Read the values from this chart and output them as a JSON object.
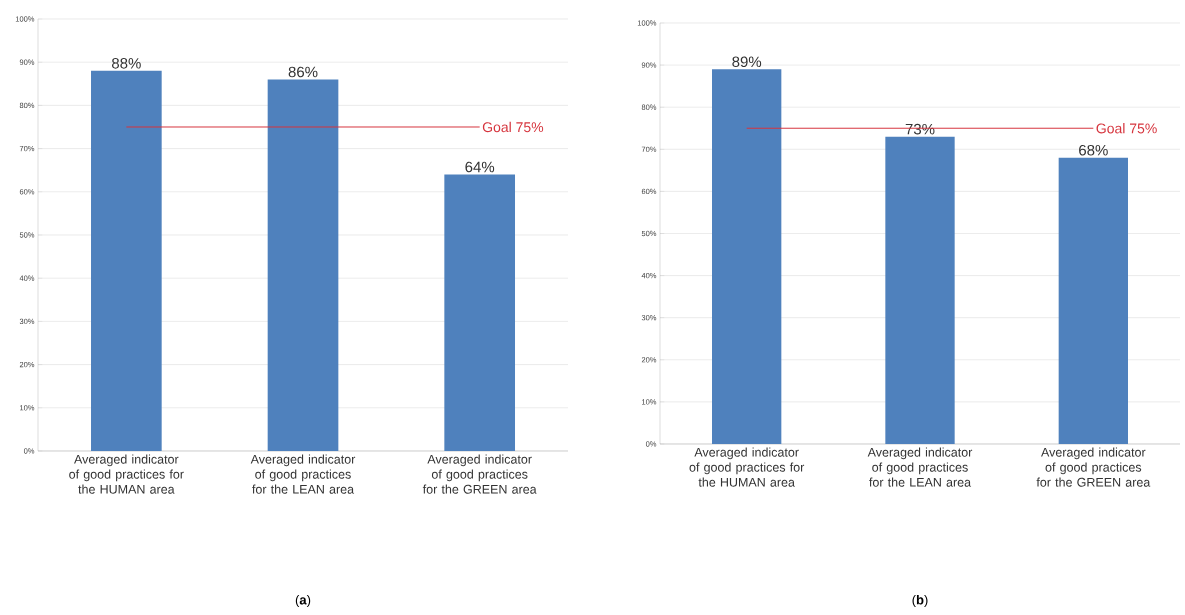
{
  "chart_data": [
    {
      "type": "bar",
      "categories": [
        "Averaged indicator of good practices for the HUMAN area",
        "Averaged indicator of good practices for the LEAN area",
        "Averaged indicator of good practices for the GREEN area"
      ],
      "values": [
        88,
        86,
        64
      ],
      "value_labels": [
        "88%",
        "86%",
        "64%"
      ],
      "color": "#4f81bd",
      "ylim": [
        0,
        100
      ],
      "yticks": [
        {
          "value": 0,
          "label": "0%"
        },
        {
          "value": 10,
          "label": "10%"
        },
        {
          "value": 20,
          "label": "20%"
        },
        {
          "value": 30,
          "label": "30%"
        },
        {
          "value": 40,
          "label": "40%"
        },
        {
          "value": 50,
          "label": "50%"
        },
        {
          "value": 60,
          "label": "60%"
        },
        {
          "value": 70,
          "label": "70%"
        },
        {
          "value": 80,
          "label": "80%"
        },
        {
          "value": 90,
          "label": "90%"
        },
        {
          "value": 100,
          "label": "100%"
        }
      ],
      "grid": "y",
      "ref_lines": [
        {
          "axis": "y",
          "value": 75,
          "label": "Goal 75%",
          "color": "#d6343d"
        }
      ],
      "annotations": [
        "(**a**)"
      ]
    },
    {
      "type": "bar",
      "categories": [
        "Averaged indicator of good practices for the HUMAN area",
        "Averaged indicator of good practices for the LEAN area",
        "Averaged indicator of good practices for the GREEN area"
      ],
      "values": [
        89,
        73,
        68
      ],
      "value_labels": [
        "89%",
        "73%",
        "68%"
      ],
      "color": "#4f81bd",
      "ylim": [
        0,
        100
      ],
      "yticks": [
        {
          "value": 0,
          "label": "0%"
        },
        {
          "value": 10,
          "label": "10%"
        },
        {
          "value": 20,
          "label": "20%"
        },
        {
          "value": 30,
          "label": "30%"
        },
        {
          "value": 40,
          "label": "40%"
        },
        {
          "value": 50,
          "label": "50%"
        },
        {
          "value": 60,
          "label": "60%"
        },
        {
          "value": 70,
          "label": "70%"
        },
        {
          "value": 80,
          "label": "80%"
        },
        {
          "value": 90,
          "label": "90%"
        },
        {
          "value": 100,
          "label": "100%"
        }
      ],
      "grid": "y",
      "ref_lines": [
        {
          "axis": "y",
          "value": 75,
          "label": "Goal 75%",
          "color": "#d6343d"
        }
      ],
      "annotations": [
        "(**b**)"
      ]
    }
  ]
}
